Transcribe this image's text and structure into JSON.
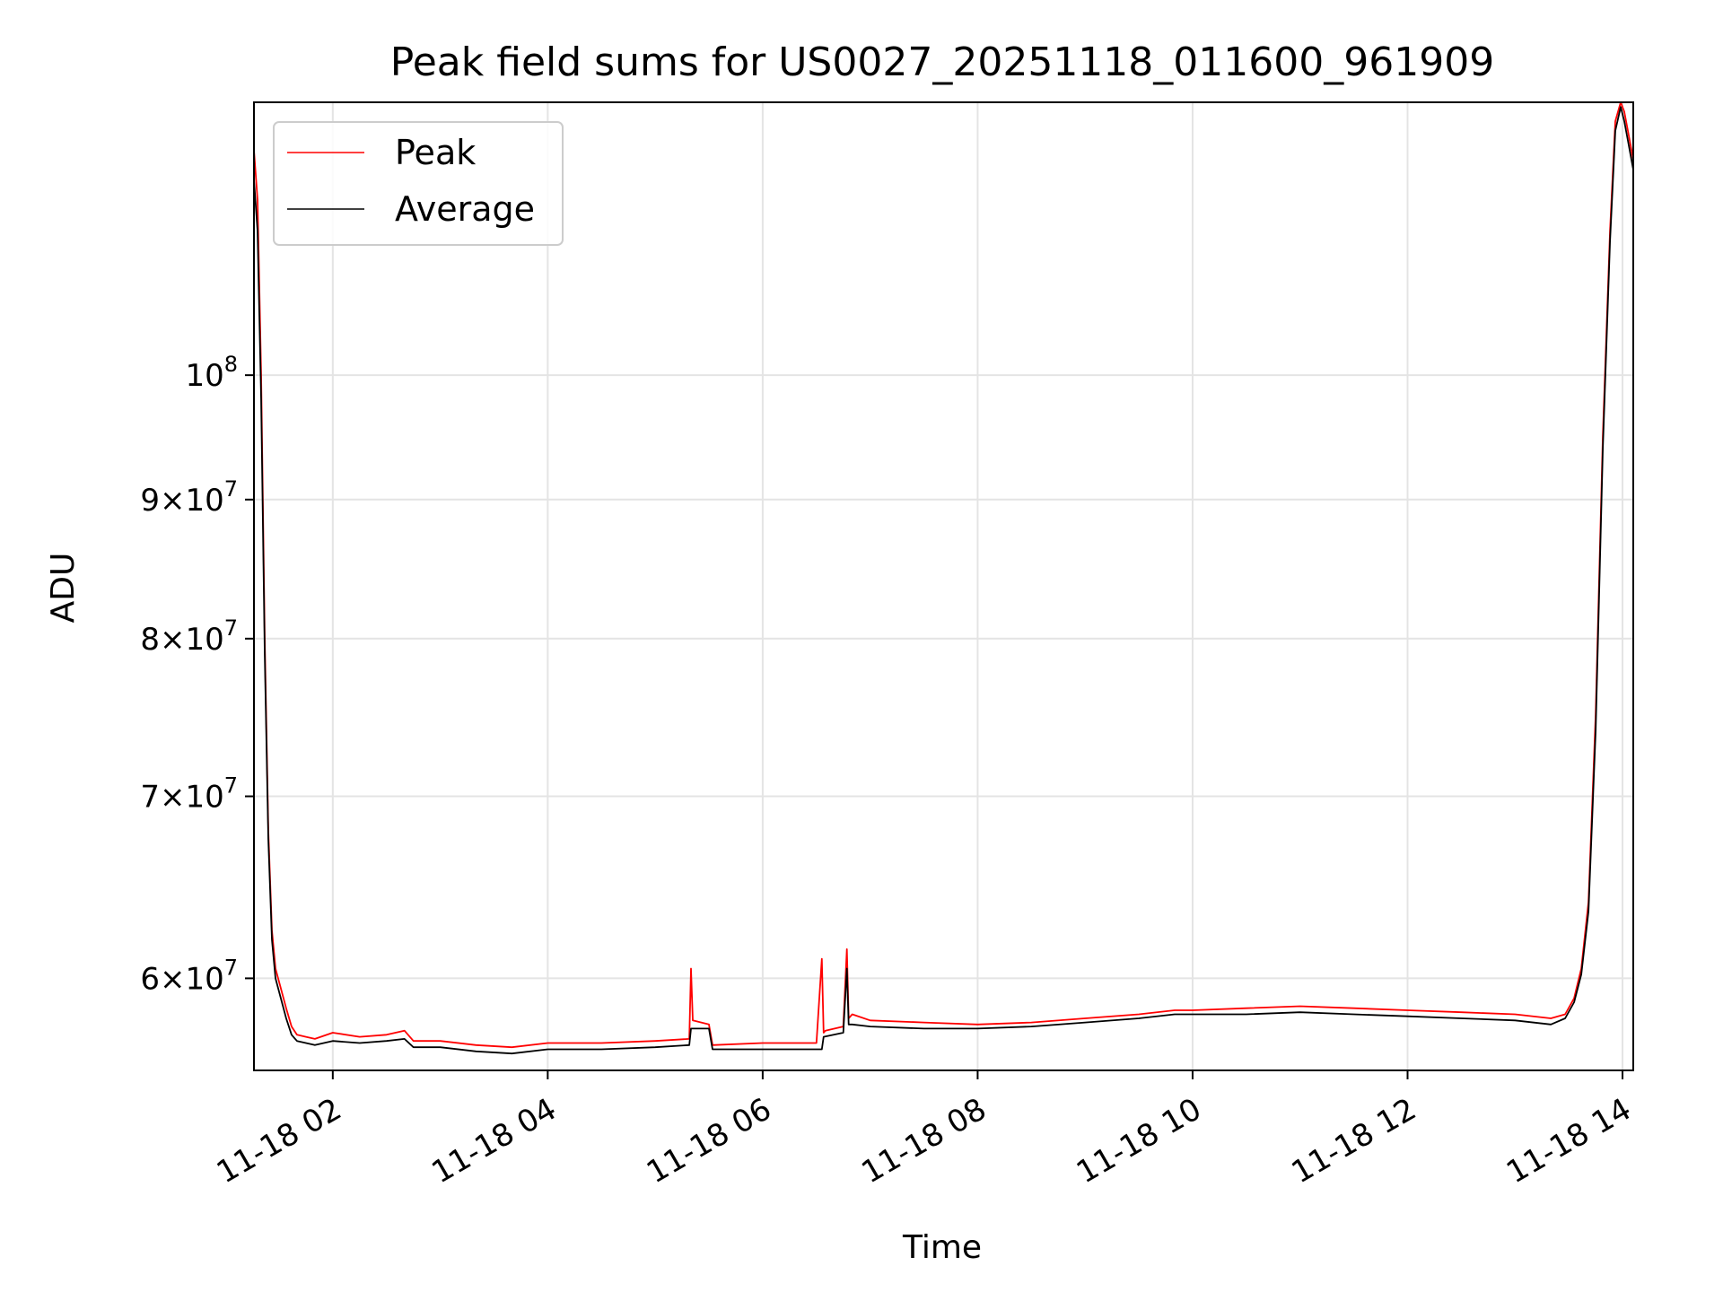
{
  "chart_data": {
    "type": "line",
    "title": "Peak field sums for US0027_20251118_011600_961909",
    "xlabel": "Time",
    "ylabel": "ADU",
    "yscale": "log",
    "grid": true,
    "legend_position": "top-left",
    "xlim": [
      "2025-11-18 01:16",
      "2025-11-18 14:06"
    ],
    "ylim": [
      55500000,
      126000000
    ],
    "x_ticks": [
      {
        "label": "11-18 02",
        "value": "2025-11-18 02:00"
      },
      {
        "label": "11-18 04",
        "value": "2025-11-18 04:00"
      },
      {
        "label": "11-18 06",
        "value": "2025-11-18 06:00"
      },
      {
        "label": "11-18 08",
        "value": "2025-11-18 08:00"
      },
      {
        "label": "11-18 10",
        "value": "2025-11-18 10:00"
      },
      {
        "label": "11-18 12",
        "value": "2025-11-18 12:00"
      },
      {
        "label": "11-18 14",
        "value": "2025-11-18 14:00"
      }
    ],
    "y_ticks": [
      {
        "value": 60000000,
        "mantissa": "6",
        "base": "10",
        "exp": "7"
      },
      {
        "value": 70000000,
        "mantissa": "7",
        "base": "10",
        "exp": "7"
      },
      {
        "value": 80000000,
        "mantissa": "8",
        "base": "10",
        "exp": "7"
      },
      {
        "value": 90000000,
        "mantissa": "9",
        "base": "10",
        "exp": "7"
      },
      {
        "value": 100000000,
        "mantissa": "",
        "base": "10",
        "exp": "8"
      }
    ],
    "series": [
      {
        "name": "Peak",
        "color": "#ff0000",
        "x": [
          "2025-11-18 01:16",
          "2025-11-18 01:18",
          "2025-11-18 01:20",
          "2025-11-18 01:22",
          "2025-11-18 01:24",
          "2025-11-18 01:26",
          "2025-11-18 01:28",
          "2025-11-18 01:31",
          "2025-11-18 01:34",
          "2025-11-18 01:37",
          "2025-11-18 01:40",
          "2025-11-18 01:45",
          "2025-11-18 01:50",
          "2025-11-18 02:00",
          "2025-11-18 02:15",
          "2025-11-18 02:30",
          "2025-11-18 02:40",
          "2025-11-18 02:45",
          "2025-11-18 03:00",
          "2025-11-18 03:20",
          "2025-11-18 03:40",
          "2025-11-18 04:00",
          "2025-11-18 04:30",
          "2025-11-18 05:00",
          "2025-11-18 05:19",
          "2025-11-18 05:20",
          "2025-11-18 05:21",
          "2025-11-18 05:30",
          "2025-11-18 05:32",
          "2025-11-18 06:00",
          "2025-11-18 06:30",
          "2025-11-18 06:33",
          "2025-11-18 06:34",
          "2025-11-18 06:35",
          "2025-11-18 06:45",
          "2025-11-18 06:47",
          "2025-11-18 06:48",
          "2025-11-18 06:50",
          "2025-11-18 07:00",
          "2025-11-18 07:30",
          "2025-11-18 08:00",
          "2025-11-18 08:30",
          "2025-11-18 09:00",
          "2025-11-18 09:30",
          "2025-11-18 09:50",
          "2025-11-18 10:00",
          "2025-11-18 10:30",
          "2025-11-18 11:00",
          "2025-11-18 11:30",
          "2025-11-18 12:00",
          "2025-11-18 12:30",
          "2025-11-18 13:00",
          "2025-11-18 13:20",
          "2025-11-18 13:28",
          "2025-11-18 13:33",
          "2025-11-18 13:37",
          "2025-11-18 13:41",
          "2025-11-18 13:45",
          "2025-11-18 13:49",
          "2025-11-18 13:53",
          "2025-11-18 13:56",
          "2025-11-18 13:59",
          "2025-11-18 14:01",
          "2025-11-18 14:03",
          "2025-11-18 14:05",
          "2025-11-18 14:06"
        ],
        "y": [
          121000000,
          116000000,
          100000000,
          80000000,
          68000000,
          62500000,
          60500000,
          59500000,
          58500000,
          57600000,
          57200000,
          57100000,
          57000000,
          57300000,
          57100000,
          57200000,
          57400000,
          56900000,
          56900000,
          56700000,
          56600000,
          56800000,
          56800000,
          56900000,
          57000000,
          60500000,
          57900000,
          57700000,
          56700000,
          56800000,
          56800000,
          61000000,
          57300000,
          57400000,
          57600000,
          61500000,
          58000000,
          58200000,
          57900000,
          57800000,
          57700000,
          57800000,
          58000000,
          58200000,
          58400000,
          58400000,
          58500000,
          58600000,
          58500000,
          58400000,
          58300000,
          58200000,
          58000000,
          58200000,
          59000000,
          60500000,
          64000000,
          75000000,
          95000000,
          113000000,
          124000000,
          126000000,
          125000000,
          123000000,
          121000000,
          120000000
        ]
      },
      {
        "name": "Average",
        "color": "#000000",
        "x": [
          "2025-11-18 01:16",
          "2025-11-18 01:18",
          "2025-11-18 01:20",
          "2025-11-18 01:22",
          "2025-11-18 01:24",
          "2025-11-18 01:26",
          "2025-11-18 01:28",
          "2025-11-18 01:31",
          "2025-11-18 01:34",
          "2025-11-18 01:37",
          "2025-11-18 01:40",
          "2025-11-18 01:45",
          "2025-11-18 01:50",
          "2025-11-18 02:00",
          "2025-11-18 02:15",
          "2025-11-18 02:30",
          "2025-11-18 02:40",
          "2025-11-18 02:45",
          "2025-11-18 03:00",
          "2025-11-18 03:20",
          "2025-11-18 03:40",
          "2025-11-18 04:00",
          "2025-11-18 04:30",
          "2025-11-18 05:00",
          "2025-11-18 05:19",
          "2025-11-18 05:20",
          "2025-11-18 05:30",
          "2025-11-18 05:32",
          "2025-11-18 06:00",
          "2025-11-18 06:33",
          "2025-11-18 06:34",
          "2025-11-18 06:45",
          "2025-11-18 06:47",
          "2025-11-18 06:48",
          "2025-11-18 06:50",
          "2025-11-18 07:00",
          "2025-11-18 07:30",
          "2025-11-18 08:00",
          "2025-11-18 08:30",
          "2025-11-18 09:00",
          "2025-11-18 09:30",
          "2025-11-18 09:50",
          "2025-11-18 10:00",
          "2025-11-18 10:30",
          "2025-11-18 11:00",
          "2025-11-18 11:30",
          "2025-11-18 12:00",
          "2025-11-18 12:30",
          "2025-11-18 13:00",
          "2025-11-18 13:20",
          "2025-11-18 13:28",
          "2025-11-18 13:33",
          "2025-11-18 13:37",
          "2025-11-18 13:41",
          "2025-11-18 13:45",
          "2025-11-18 13:49",
          "2025-11-18 13:53",
          "2025-11-18 13:56",
          "2025-11-18 13:59",
          "2025-11-18 14:01",
          "2025-11-18 14:03",
          "2025-11-18 14:05",
          "2025-11-18 14:06"
        ],
        "y": [
          118000000,
          113000000,
          98000000,
          79000000,
          67500000,
          62000000,
          60000000,
          59000000,
          58000000,
          57200000,
          56900000,
          56800000,
          56700000,
          56900000,
          56800000,
          56900000,
          57000000,
          56600000,
          56600000,
          56400000,
          56300000,
          56500000,
          56500000,
          56600000,
          56700000,
          57500000,
          57500000,
          56500000,
          56500000,
          56500000,
          57100000,
          57300000,
          60500000,
          57700000,
          57700000,
          57600000,
          57500000,
          57500000,
          57600000,
          57800000,
          58000000,
          58200000,
          58200000,
          58200000,
          58300000,
          58200000,
          58100000,
          58000000,
          57900000,
          57700000,
          58000000,
          58800000,
          60200000,
          63500000,
          74000000,
          94000000,
          112000000,
          123000000,
          125500000,
          124000000,
          122000000,
          120000000,
          119000000
        ]
      }
    ]
  }
}
